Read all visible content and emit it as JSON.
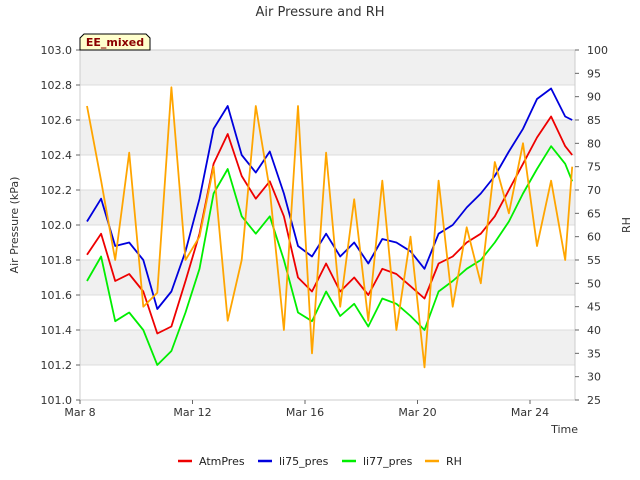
{
  "chart_data": {
    "type": "line",
    "title": "Air Pressure and RH",
    "annotation": "EE_mixed",
    "xlabel": "Time",
    "ylabel": "Air Pressure (kPa)",
    "y2label": "RH",
    "xlim": [
      "2024-03-08",
      "2024-03-25.6"
    ],
    "ylim": [
      101.0,
      103.0
    ],
    "y2lim": [
      25,
      100
    ],
    "x_ticks": [
      {
        "value": "2024-03-08",
        "label": "Mar 8"
      },
      {
        "value": "2024-03-12",
        "label": "Mar 12"
      },
      {
        "value": "2024-03-16",
        "label": "Mar 16"
      },
      {
        "value": "2024-03-20",
        "label": "Mar 20"
      },
      {
        "value": "2024-03-24",
        "label": "Mar 24"
      }
    ],
    "y_ticks": [
      "101.0",
      "101.2",
      "101.4",
      "101.6",
      "101.8",
      "102.0",
      "102.2",
      "102.4",
      "102.6",
      "102.8",
      "103.0"
    ],
    "y2_ticks": [
      "25",
      "30",
      "35",
      "40",
      "45",
      "50",
      "55",
      "60",
      "65",
      "70",
      "75",
      "80",
      "85",
      "90",
      "95",
      "100"
    ],
    "grid": true,
    "banded_background": true,
    "legend_position": "bottom",
    "x": [
      "2024-03-08 06:00",
      "2024-03-08 18:00",
      "2024-03-09 06:00",
      "2024-03-09 18:00",
      "2024-03-10 06:00",
      "2024-03-10 18:00",
      "2024-03-11 06:00",
      "2024-03-11 18:00",
      "2024-03-12 06:00",
      "2024-03-12 18:00",
      "2024-03-13 06:00",
      "2024-03-13 18:00",
      "2024-03-14 06:00",
      "2024-03-14 18:00",
      "2024-03-15 06:00",
      "2024-03-15 18:00",
      "2024-03-16 06:00",
      "2024-03-16 18:00",
      "2024-03-17 06:00",
      "2024-03-17 18:00",
      "2024-03-18 06:00",
      "2024-03-18 18:00",
      "2024-03-19 06:00",
      "2024-03-19 18:00",
      "2024-03-20 06:00",
      "2024-03-20 18:00",
      "2024-03-21 06:00",
      "2024-03-21 18:00",
      "2024-03-22 06:00",
      "2024-03-22 18:00",
      "2024-03-23 06:00",
      "2024-03-23 18:00",
      "2024-03-24 06:00",
      "2024-03-24 18:00",
      "2024-03-25 06:00",
      "2024-03-25 12:00"
    ],
    "series": [
      {
        "name": "AtmPres",
        "axis": "left",
        "color": "#ee0000",
        "values": [
          101.83,
          101.95,
          101.68,
          101.72,
          101.62,
          101.38,
          101.42,
          101.68,
          101.95,
          102.35,
          102.52,
          102.28,
          102.15,
          102.25,
          102.05,
          101.7,
          101.62,
          101.78,
          101.62,
          101.7,
          101.6,
          101.75,
          101.72,
          101.65,
          101.58,
          101.78,
          101.82,
          101.9,
          101.95,
          102.05,
          102.2,
          102.35,
          102.5,
          102.62,
          102.45,
          102.4
        ]
      },
      {
        "name": "li75_pres",
        "axis": "left",
        "color": "#0000dd",
        "values": [
          102.02,
          102.15,
          101.88,
          101.9,
          101.8,
          101.52,
          101.62,
          101.85,
          102.15,
          102.55,
          102.68,
          102.4,
          102.3,
          102.42,
          102.18,
          101.88,
          101.82,
          101.95,
          101.82,
          101.9,
          101.78,
          101.92,
          101.9,
          101.85,
          101.75,
          101.95,
          102.0,
          102.1,
          102.18,
          102.28,
          102.42,
          102.55,
          102.72,
          102.78,
          102.62,
          102.6
        ]
      },
      {
        "name": "li77_pres",
        "axis": "left",
        "color": "#00ee00",
        "values": [
          101.68,
          101.82,
          101.45,
          101.5,
          101.4,
          101.2,
          101.28,
          101.5,
          101.75,
          102.18,
          102.32,
          102.05,
          101.95,
          102.05,
          101.8,
          101.5,
          101.45,
          101.62,
          101.48,
          101.55,
          101.42,
          101.58,
          101.55,
          101.48,
          101.4,
          101.62,
          101.68,
          101.75,
          101.8,
          101.9,
          102.02,
          102.18,
          102.32,
          102.45,
          102.35,
          102.25
        ]
      },
      {
        "name": "RH",
        "axis": "right",
        "color": "#ffa500",
        "values": [
          88,
          72,
          55,
          78,
          45,
          48,
          92,
          55,
          60,
          75,
          42,
          55,
          88,
          70,
          40,
          88,
          35,
          78,
          45,
          68,
          42,
          72,
          40,
          60,
          32,
          72,
          45,
          62,
          50,
          76,
          65,
          80,
          58,
          72,
          55,
          75
        ]
      }
    ]
  }
}
